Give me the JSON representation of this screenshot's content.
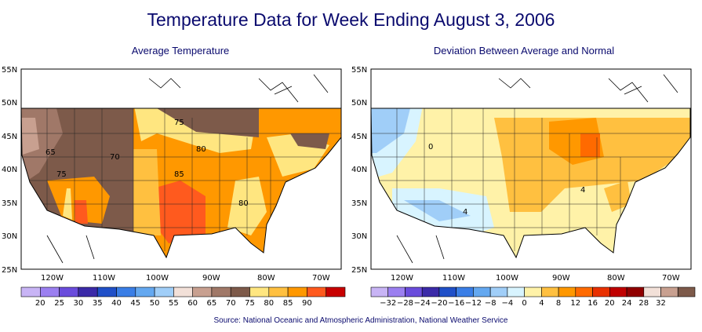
{
  "title": "Temperature Data for Week Ending August 3, 2006",
  "source": "Source:  National Oceanic and Atmospheric Administration, National Weather Service",
  "lat_labels": [
    "55N",
    "50N",
    "45N",
    "40N",
    "35N",
    "30N",
    "25N"
  ],
  "lon_labels": [
    "120W",
    "110W",
    "100W",
    "90W",
    "80W",
    "70W"
  ],
  "left_map": {
    "title": "Average Temperature",
    "contour_labels": [
      "65",
      "70",
      "75",
      "75",
      "80",
      "85",
      "80"
    ],
    "legend_labels": [
      "20",
      "25",
      "30",
      "35",
      "40",
      "45",
      "50",
      "55",
      "60",
      "65",
      "70",
      "75",
      "80",
      "85",
      "90"
    ],
    "legend_colors": [
      "#c8b4f5",
      "#9b7ff0",
      "#6a4cdc",
      "#3b2aa8",
      "#2050c8",
      "#3a7ee6",
      "#64a8f0",
      "#a0ceF8",
      "#f2e0d8",
      "#c8a090",
      "#a07868",
      "#7d5a4a",
      "#ffe680",
      "#ffc040",
      "#ff9800",
      "#ff5a1e",
      "#c80000"
    ]
  },
  "right_map": {
    "title": "Deviation Between Average and Normal",
    "contour_labels": [
      "0",
      "4",
      "4"
    ],
    "legend_labels": [
      "−32",
      "−28",
      "−24",
      "−20",
      "−16",
      "−12",
      "−8",
      "−4",
      "0",
      "4",
      "8",
      "12",
      "16",
      "20",
      "24",
      "28",
      "32"
    ],
    "legend_colors": [
      "#c8b4f5",
      "#9b7ff0",
      "#6a4cdc",
      "#3b2aa8",
      "#2050c8",
      "#3a7ee6",
      "#64a8f0",
      "#a0cef8",
      "#d8f4ff",
      "#fff2a8",
      "#ffc040",
      "#ff9800",
      "#ff6a00",
      "#e83000",
      "#c00000",
      "#900000",
      "#f2e0d8",
      "#c8a090",
      "#7d5a4a"
    ]
  }
}
